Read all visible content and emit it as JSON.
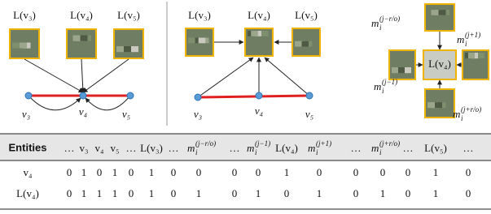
{
  "panels": [
    {
      "labels": [
        "L(v₃)",
        "L(v₄)",
        "L(v₅)"
      ],
      "nodes": [
        "v₃",
        "v₄",
        "v₅"
      ]
    },
    {
      "labels": [
        "L(v₃)",
        "L(v₄)",
        "L(v₅)"
      ],
      "nodes": [
        "v₃",
        "v₄",
        "v₅"
      ]
    }
  ],
  "neighborhood": {
    "center": "L(v₄)",
    "top": {
      "base": "m",
      "sub": "i",
      "sup": "(j−r/o)"
    },
    "right": {
      "base": "m",
      "sub": "i",
      "sup": "(j+1)"
    },
    "left": {
      "base": "m",
      "sub": "i",
      "sup": "(j−1)"
    },
    "bottom": {
      "base": "m",
      "sub": "i",
      "sup": "(j+r/o)"
    }
  },
  "table": {
    "header": [
      "Entities",
      "…",
      "v₃",
      "v₄",
      "v₅",
      "…",
      "L(v₃)",
      "…",
      {
        "base": "m",
        "sub": "i",
        "sup": "(j−r/o)"
      },
      "…",
      {
        "base": "m",
        "sub": "i",
        "sup": "(j−1)"
      },
      "L(v₄)",
      {
        "base": "m",
        "sub": "i",
        "sup": "(j+1)"
      },
      "…",
      {
        "base": "m",
        "sub": "i",
        "sup": "(j+r/o)"
      },
      "…",
      "L(v₅)",
      "…"
    ],
    "rows": [
      [
        "v₄",
        0,
        1,
        0,
        1,
        0,
        1,
        0,
        0,
        0,
        0,
        1,
        0,
        0,
        0,
        0,
        1,
        0
      ],
      [
        "L(v₄)",
        0,
        1,
        1,
        1,
        0,
        1,
        0,
        1,
        0,
        1,
        0,
        1,
        0,
        1,
        0,
        1,
        0
      ]
    ]
  }
}
